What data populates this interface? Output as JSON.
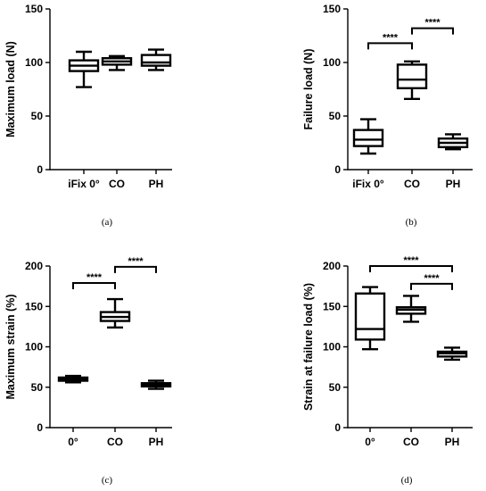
{
  "chart_data": [
    {
      "type": "box",
      "caption": "(a)",
      "ylabel": "Maximum load (N)",
      "xlabel": "",
      "ylim": [
        0,
        150
      ],
      "yticks": [
        0,
        50,
        100,
        150
      ],
      "categories": [
        "iFix 0°",
        "CO",
        "PH"
      ],
      "boxes": [
        {
          "min": 77,
          "q1": 92,
          "median": 97,
          "q3": 102,
          "max": 110
        },
        {
          "min": 93,
          "q1": 98,
          "median": 101,
          "q3": 104,
          "max": 106
        },
        {
          "min": 93,
          "q1": 97,
          "median": 100,
          "q3": 107,
          "max": 112
        }
      ],
      "significance": []
    },
    {
      "type": "box",
      "caption": "(b)",
      "ylabel": "Failure load (N)",
      "xlabel": "",
      "ylim": [
        0,
        150
      ],
      "yticks": [
        0,
        50,
        100,
        150
      ],
      "categories": [
        "iFix 0°",
        "CO",
        "PH"
      ],
      "boxes": [
        {
          "min": 15,
          "q1": 22,
          "median": 28,
          "q3": 37,
          "max": 47
        },
        {
          "min": 66,
          "q1": 76,
          "median": 84,
          "q3": 98,
          "max": 101
        },
        {
          "min": 19,
          "q1": 21,
          "median": 25,
          "q3": 29,
          "max": 33
        }
      ],
      "significance": [
        {
          "from": 0,
          "to": 1,
          "y": 118,
          "label": "****"
        },
        {
          "from": 1,
          "to": 2,
          "y": 132,
          "label": "****"
        }
      ]
    },
    {
      "type": "box",
      "caption": "(c)",
      "ylabel": "Maximum strain (%)",
      "xlabel": "",
      "ylim": [
        0,
        200
      ],
      "yticks": [
        0,
        50,
        100,
        150,
        200
      ],
      "categories": [
        "0°",
        "CO",
        "PH"
      ],
      "boxes": [
        {
          "min": 56,
          "q1": 58,
          "median": 60,
          "q3": 62,
          "max": 64
        },
        {
          "min": 124,
          "q1": 132,
          "median": 137,
          "q3": 143,
          "max": 159
        },
        {
          "min": 48,
          "q1": 51,
          "median": 53,
          "q3": 55,
          "max": 58
        }
      ],
      "significance": [
        {
          "from": 0,
          "to": 1,
          "y": 179,
          "label": "****"
        },
        {
          "from": 1,
          "to": 2,
          "y": 199,
          "label": "****"
        }
      ]
    },
    {
      "type": "box",
      "caption": "(d)",
      "ylabel": "Strain at failure load (%)",
      "xlabel": "",
      "ylim": [
        0,
        200
      ],
      "yticks": [
        0,
        50,
        100,
        150,
        200
      ],
      "categories": [
        "0°",
        "CO",
        "PH"
      ],
      "boxes": [
        {
          "min": 97,
          "q1": 109,
          "median": 122,
          "q3": 166,
          "max": 174
        },
        {
          "min": 131,
          "q1": 141,
          "median": 146,
          "q3": 149,
          "max": 163
        },
        {
          "min": 84,
          "q1": 88,
          "median": 92,
          "q3": 94,
          "max": 99
        }
      ],
      "significance": [
        {
          "from": 0,
          "to": 2,
          "y": 200,
          "label": "****"
        },
        {
          "from": 1,
          "to": 2,
          "y": 178,
          "label": "****"
        }
      ]
    }
  ]
}
